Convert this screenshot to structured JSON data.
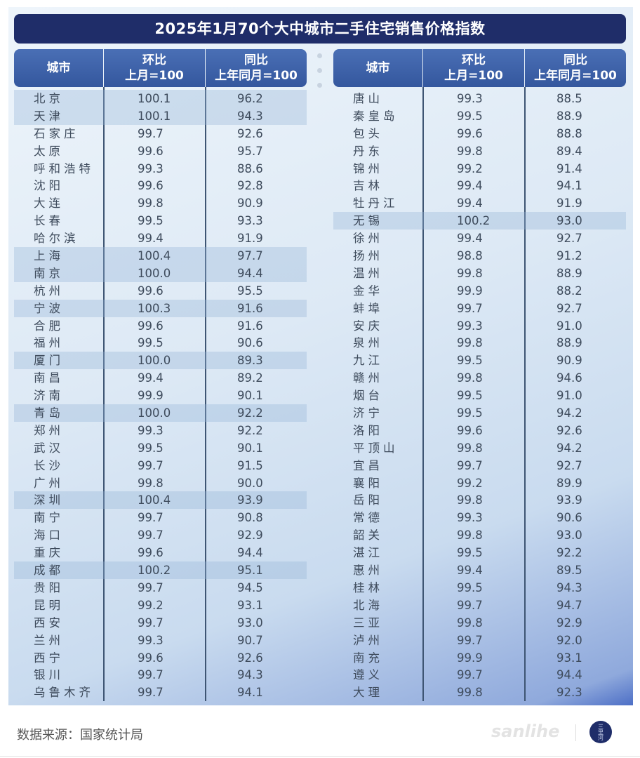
{
  "title": "2025年1月70个大中城市二手住宅销售价格指数",
  "headers": {
    "city": "城市",
    "mom_line1": "环比",
    "mom_line2": "上月=100",
    "yoy_line1": "同比",
    "yoy_line2": "上年同月=100"
  },
  "left_rows": [
    [
      "北京",
      "100.1",
      "96.2"
    ],
    [
      "天津",
      "100.1",
      "94.3"
    ],
    [
      "石家庄",
      "99.7",
      "92.6"
    ],
    [
      "太原",
      "99.6",
      "95.7"
    ],
    [
      "呼和浩特",
      "99.3",
      "88.6"
    ],
    [
      "沈阳",
      "99.6",
      "92.8"
    ],
    [
      "大连",
      "99.8",
      "90.9"
    ],
    [
      "长春",
      "99.5",
      "93.3"
    ],
    [
      "哈尔滨",
      "99.4",
      "91.9"
    ],
    [
      "上海",
      "100.4",
      "97.7"
    ],
    [
      "南京",
      "100.0",
      "94.4"
    ],
    [
      "杭州",
      "99.6",
      "95.5"
    ],
    [
      "宁波",
      "100.3",
      "91.6"
    ],
    [
      "合肥",
      "99.6",
      "91.6"
    ],
    [
      "福州",
      "99.5",
      "90.6"
    ],
    [
      "厦门",
      "100.0",
      "89.3"
    ],
    [
      "南昌",
      "99.4",
      "89.2"
    ],
    [
      "济南",
      "99.9",
      "90.1"
    ],
    [
      "青岛",
      "100.0",
      "92.2"
    ],
    [
      "郑州",
      "99.3",
      "92.2"
    ],
    [
      "武汉",
      "99.5",
      "90.1"
    ],
    [
      "长沙",
      "99.7",
      "91.5"
    ],
    [
      "广州",
      "99.8",
      "90.0"
    ],
    [
      "深圳",
      "100.4",
      "93.9"
    ],
    [
      "南宁",
      "99.7",
      "90.8"
    ],
    [
      "海口",
      "99.7",
      "92.9"
    ],
    [
      "重庆",
      "99.6",
      "94.4"
    ],
    [
      "成都",
      "100.2",
      "95.1"
    ],
    [
      "贵阳",
      "99.7",
      "94.5"
    ],
    [
      "昆明",
      "99.2",
      "93.1"
    ],
    [
      "西安",
      "99.7",
      "93.0"
    ],
    [
      "兰州",
      "99.3",
      "90.7"
    ],
    [
      "西宁",
      "99.6",
      "92.6"
    ],
    [
      "银川",
      "99.7",
      "94.3"
    ],
    [
      "乌鲁木齐",
      "99.7",
      "94.1"
    ]
  ],
  "right_rows": [
    [
      "唐山",
      "99.3",
      "88.5"
    ],
    [
      "秦皇岛",
      "99.5",
      "88.9"
    ],
    [
      "包头",
      "99.6",
      "88.8"
    ],
    [
      "丹东",
      "99.8",
      "89.4"
    ],
    [
      "锦州",
      "99.2",
      "91.4"
    ],
    [
      "吉林",
      "99.4",
      "94.1"
    ],
    [
      "牡丹江",
      "99.4",
      "91.9"
    ],
    [
      "无锡",
      "100.2",
      "93.0"
    ],
    [
      "徐州",
      "99.4",
      "92.7"
    ],
    [
      "扬州",
      "98.8",
      "91.2"
    ],
    [
      "温州",
      "99.8",
      "88.9"
    ],
    [
      "金华",
      "99.9",
      "88.2"
    ],
    [
      "蚌埠",
      "99.7",
      "92.7"
    ],
    [
      "安庆",
      "99.3",
      "91.0"
    ],
    [
      "泉州",
      "99.8",
      "88.9"
    ],
    [
      "九江",
      "99.5",
      "90.9"
    ],
    [
      "赣州",
      "99.8",
      "94.6"
    ],
    [
      "烟台",
      "99.5",
      "91.0"
    ],
    [
      "济宁",
      "99.5",
      "94.2"
    ],
    [
      "洛阳",
      "99.6",
      "92.6"
    ],
    [
      "平顶山",
      "99.8",
      "94.2"
    ],
    [
      "宜昌",
      "99.7",
      "92.7"
    ],
    [
      "襄阳",
      "99.2",
      "89.9"
    ],
    [
      "岳阳",
      "99.8",
      "93.9"
    ],
    [
      "常德",
      "99.3",
      "90.6"
    ],
    [
      "韶关",
      "99.8",
      "93.0"
    ],
    [
      "湛江",
      "99.5",
      "92.2"
    ],
    [
      "惠州",
      "99.4",
      "89.5"
    ],
    [
      "桂林",
      "99.5",
      "94.3"
    ],
    [
      "北海",
      "99.7",
      "94.7"
    ],
    [
      "三亚",
      "99.8",
      "92.9"
    ],
    [
      "泸州",
      "99.7",
      "92.0"
    ],
    [
      "南充",
      "99.9",
      "93.1"
    ],
    [
      "遵义",
      "99.7",
      "94.4"
    ],
    [
      "大理",
      "99.8",
      "92.3"
    ]
  ],
  "footer": {
    "source": "数据来源：国家统计局",
    "brand": "sanlihe",
    "logo_text": "三里河"
  },
  "colors": {
    "title_bg": "#1f2d69",
    "header_bg": "#3d62a8",
    "highlight_row": "#b9cde3",
    "text": "#3e4b5c"
  }
}
